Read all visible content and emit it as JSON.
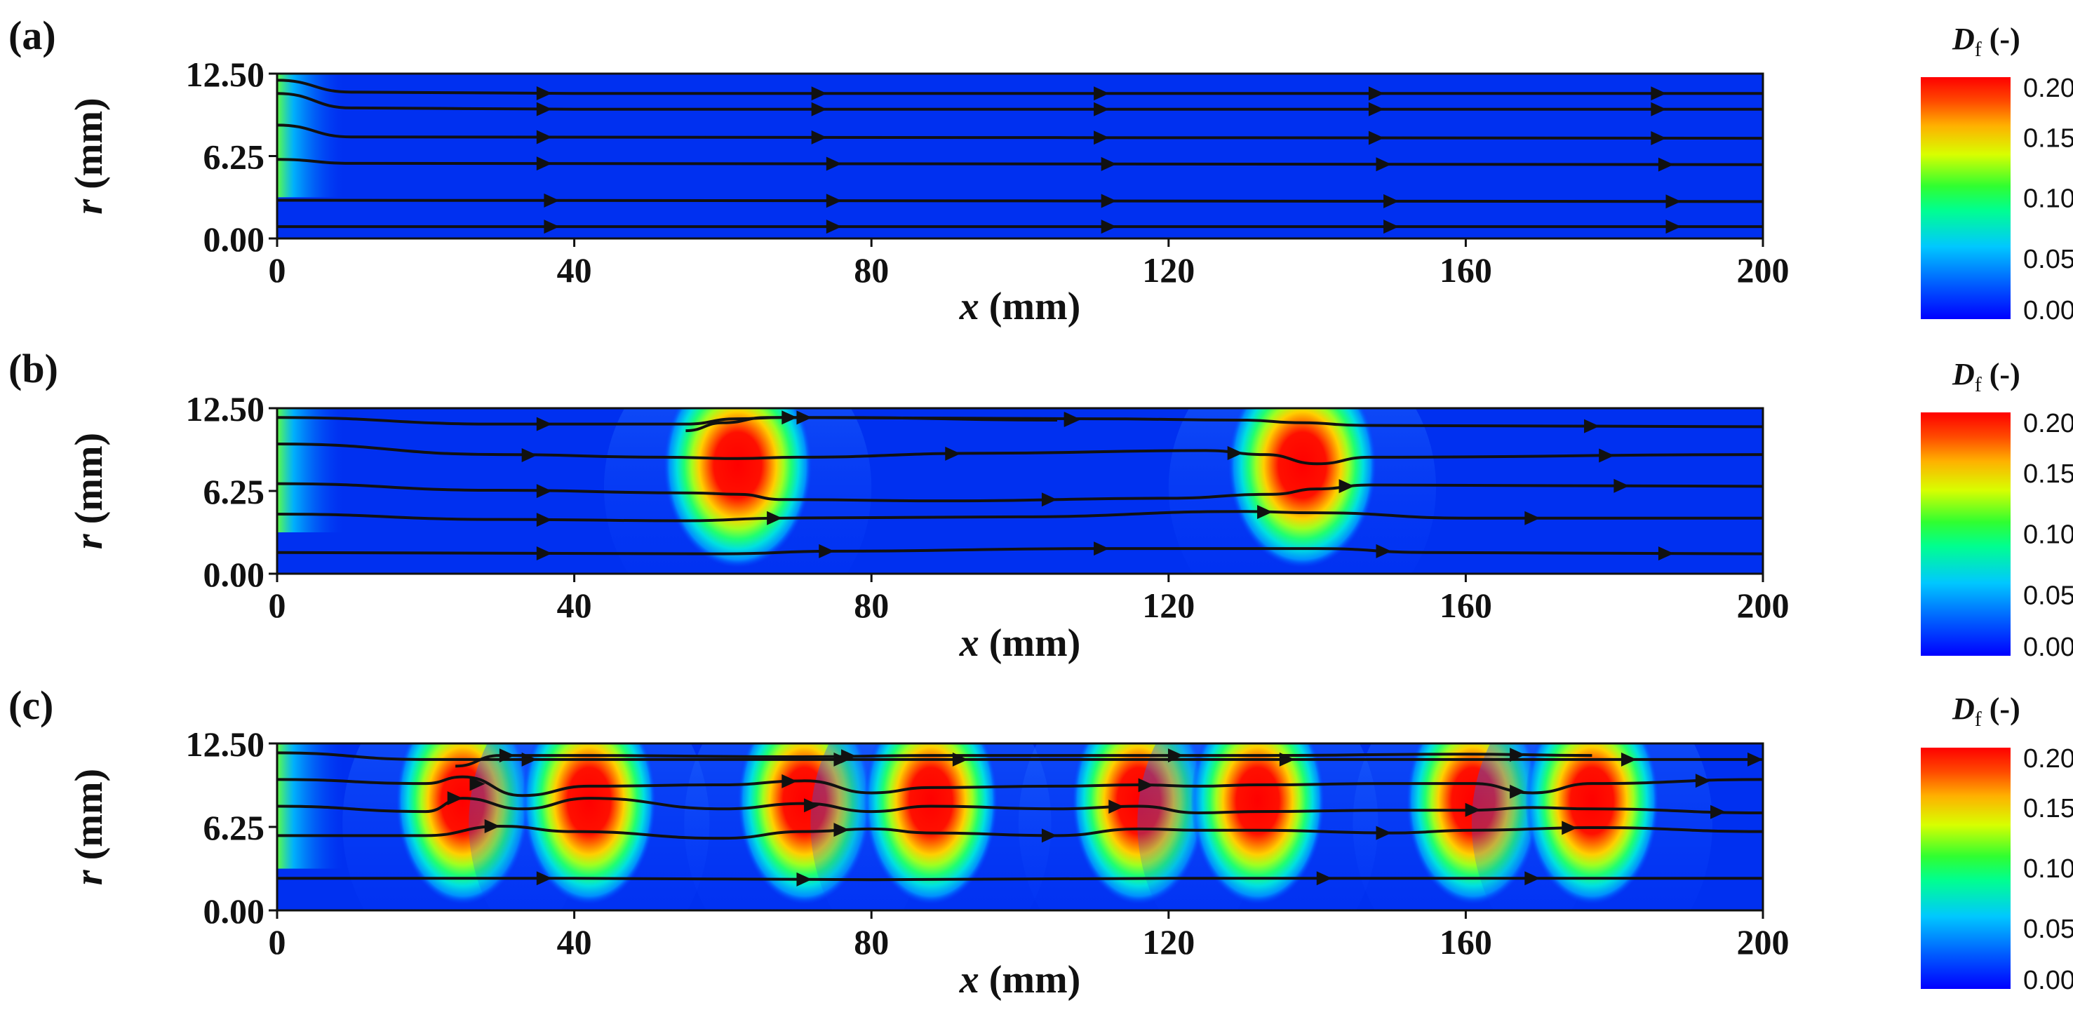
{
  "chart_data": [
    {
      "type": "heatmap",
      "panel": "(a)",
      "xlabel_var": "x",
      "xlabel_unit": "(mm)",
      "ylabel_var": "r",
      "ylabel_unit": "(mm)",
      "xlim": [
        0,
        200
      ],
      "ylim": [
        0,
        12.5
      ],
      "x_ticks": [
        "0",
        "40",
        "80",
        "120",
        "160",
        "200"
      ],
      "y_ticks": [
        "0.00",
        "6.25",
        "12.50"
      ],
      "hotspots": [],
      "streamlines": [
        {
          "r": 11.0,
          "points": [
            [
              0,
              12.0
            ],
            [
              10,
              11.1
            ],
            [
              40,
              11.0
            ],
            [
              200,
              11.0
            ]
          ],
          "arrows": [
            37,
            74,
            112,
            149,
            187
          ]
        },
        {
          "r": 9.8,
          "points": [
            [
              0,
              11.0
            ],
            [
              10,
              9.9
            ],
            [
              40,
              9.8
            ],
            [
              200,
              9.8
            ]
          ],
          "arrows": [
            37,
            74,
            112,
            149,
            187
          ]
        },
        {
          "r": 7.6,
          "points": [
            [
              0,
              8.6
            ],
            [
              10,
              7.7
            ],
            [
              200,
              7.6
            ]
          ],
          "arrows": [
            37,
            74,
            112,
            149,
            187
          ]
        },
        {
          "r": 5.6,
          "points": [
            [
              0,
              6.0
            ],
            [
              10,
              5.7
            ],
            [
              200,
              5.6
            ]
          ],
          "arrows": [
            37,
            76,
            113,
            150,
            188
          ]
        },
        {
          "r": 2.8,
          "points": [
            [
              0,
              2.9
            ],
            [
              200,
              2.8
            ]
          ],
          "arrows": [
            38,
            76,
            113,
            151,
            189
          ]
        },
        {
          "r": 0.9,
          "points": [
            [
              0,
              0.9
            ],
            [
              200,
              0.9
            ]
          ],
          "arrows": [
            38,
            76,
            113,
            151,
            189
          ]
        }
      ],
      "colorbar": {
        "title_symbol": "D",
        "title_subscript": "f",
        "title_unit": "(-)",
        "ticks": [
          "0.00",
          "0.05",
          "0.10",
          "0.15",
          "0.20"
        ],
        "min": 0,
        "max": 0.2
      }
    },
    {
      "type": "heatmap",
      "panel": "(b)",
      "xlabel_var": "x",
      "xlabel_unit": "(mm)",
      "ylabel_var": "r",
      "ylabel_unit": "(mm)",
      "xlim": [
        0,
        200
      ],
      "ylim": [
        0,
        12.5
      ],
      "x_ticks": [
        "0",
        "40",
        "80",
        "120",
        "160",
        "200"
      ],
      "y_ticks": [
        "0.00",
        "6.25",
        "12.50"
      ],
      "hotspots": [
        62,
        138
      ],
      "streamlines": [
        {
          "r": 11.2,
          "points": [
            [
              0,
              11.8
            ],
            [
              30,
              11.3
            ],
            [
              55,
              11.3
            ],
            [
              62,
              11.7
            ],
            [
              68,
              11.8
            ],
            [
              110,
              11.7
            ],
            [
              130,
              11.6
            ],
            [
              138,
              11.4
            ],
            [
              146,
              11.2
            ],
            [
              200,
              11.1
            ]
          ],
          "arrows": [
            37,
            72,
            108,
            178
          ]
        },
        {
          "r": 10.6,
          "points": [
            [
              55,
              10.8
            ],
            [
              60,
              11.4
            ],
            [
              66,
              11.8
            ],
            [
              75,
              11.8
            ],
            [
              105,
              11.6
            ]
          ],
          "arrows": [
            70,
            108
          ]
        },
        {
          "r": 9.0,
          "points": [
            [
              0,
              9.8
            ],
            [
              30,
              9.0
            ],
            [
              52,
              8.8
            ],
            [
              62,
              8.7
            ],
            [
              70,
              8.8
            ],
            [
              95,
              9.1
            ],
            [
              125,
              9.3
            ],
            [
              133,
              9.0
            ],
            [
              140,
              8.3
            ],
            [
              147,
              8.8
            ],
            [
              200,
              9.0
            ]
          ],
          "arrows": [
            35,
            92,
            130,
            180
          ]
        },
        {
          "r": 6.4,
          "points": [
            [
              0,
              6.8
            ],
            [
              30,
              6.3
            ],
            [
              56,
              6.1
            ],
            [
              62,
              6.0
            ],
            [
              68,
              5.6
            ],
            [
              90,
              5.5
            ],
            [
              120,
              5.7
            ],
            [
              134,
              6.0
            ],
            [
              140,
              6.4
            ],
            [
              147,
              6.7
            ],
            [
              200,
              6.6
            ]
          ],
          "arrows": [
            37,
            105,
            145,
            182
          ]
        },
        {
          "r": 4.1,
          "points": [
            [
              0,
              4.5
            ],
            [
              30,
              4.1
            ],
            [
              55,
              4.0
            ],
            [
              68,
              4.2
            ],
            [
              100,
              4.3
            ],
            [
              130,
              4.7
            ],
            [
              140,
              4.6
            ],
            [
              160,
              4.2
            ],
            [
              200,
              4.2
            ]
          ],
          "arrows": [
            37,
            68,
            134,
            170
          ]
        },
        {
          "r": 1.6,
          "points": [
            [
              0,
              1.6
            ],
            [
              60,
              1.5
            ],
            [
              75,
              1.7
            ],
            [
              110,
              1.9
            ],
            [
              140,
              1.9
            ],
            [
              155,
              1.6
            ],
            [
              200,
              1.5
            ]
          ],
          "arrows": [
            37,
            75,
            112,
            150,
            188
          ]
        }
      ],
      "colorbar": {
        "title_symbol": "D",
        "title_subscript": "f",
        "title_unit": "(-)",
        "ticks": [
          "0.00",
          "0.05",
          "0.10",
          "0.15",
          "0.20"
        ],
        "min": 0,
        "max": 0.2
      }
    },
    {
      "type": "heatmap",
      "panel": "(c)",
      "xlabel_var": "x",
      "xlabel_unit": "(mm)",
      "ylabel_var": "r",
      "ylabel_unit": "(mm)",
      "xlim": [
        0,
        200
      ],
      "ylim": [
        0,
        12.5
      ],
      "x_ticks": [
        "0",
        "40",
        "80",
        "120",
        "160",
        "200"
      ],
      "y_ticks": [
        "0.00",
        "6.25",
        "12.50"
      ],
      "hotspots": [
        25,
        42,
        71,
        88,
        116,
        132,
        161,
        177
      ],
      "streamlines": [
        {
          "r": 11.2,
          "points": [
            [
              0,
              11.8
            ],
            [
              20,
              11.3
            ],
            [
              200,
              11.3
            ]
          ],
          "arrows": [
            35,
            77,
            93,
            137,
            183,
            200
          ]
        },
        {
          "r": 10.8,
          "points": [
            [
              24,
              10.8
            ],
            [
              30,
              11.6
            ],
            [
              42,
              11.6
            ],
            [
              70,
              11.5
            ],
            [
              88,
              11.6
            ],
            [
              116,
              11.6
            ],
            [
              132,
              11.6
            ],
            [
              160,
              11.7
            ],
            [
              177,
              11.6
            ]
          ],
          "arrows": [
            32,
            78,
            122,
            168
          ]
        },
        {
          "r": 9.5,
          "points": [
            [
              0,
              9.8
            ],
            [
              20,
              9.5
            ],
            [
              25,
              10.0
            ],
            [
              33,
              8.6
            ],
            [
              42,
              9.3
            ],
            [
              60,
              9.4
            ],
            [
              71,
              9.7
            ],
            [
              80,
              8.8
            ],
            [
              88,
              9.2
            ],
            [
              105,
              9.3
            ],
            [
              116,
              9.4
            ],
            [
              124,
              9.3
            ],
            [
              132,
              9.4
            ],
            [
              150,
              9.5
            ],
            [
              161,
              9.5
            ],
            [
              169,
              8.8
            ],
            [
              177,
              9.5
            ],
            [
              200,
              9.8
            ]
          ],
          "arrows": [
            28,
            70,
            118,
            168,
            193
          ]
        },
        {
          "r": 7.3,
          "points": [
            [
              0,
              7.8
            ],
            [
              20,
              7.4
            ],
            [
              25,
              8.4
            ],
            [
              33,
              7.6
            ],
            [
              42,
              8.4
            ],
            [
              60,
              7.6
            ],
            [
              71,
              8.0
            ],
            [
              80,
              7.4
            ],
            [
              88,
              7.8
            ],
            [
              105,
              7.6
            ],
            [
              116,
              7.8
            ],
            [
              124,
              7.3
            ],
            [
              132,
              7.4
            ],
            [
              150,
              7.5
            ],
            [
              161,
              7.5
            ],
            [
              169,
              7.7
            ],
            [
              177,
              7.6
            ],
            [
              200,
              7.3
            ]
          ],
          "arrows": [
            25,
            73,
            114,
            162,
            195
          ]
        },
        {
          "r": 5.3,
          "points": [
            [
              0,
              5.6
            ],
            [
              20,
              5.6
            ],
            [
              30,
              6.3
            ],
            [
              40,
              5.9
            ],
            [
              60,
              5.4
            ],
            [
              71,
              5.9
            ],
            [
              80,
              6.1
            ],
            [
              88,
              5.8
            ],
            [
              105,
              5.6
            ],
            [
              116,
              6.1
            ],
            [
              124,
              6.0
            ],
            [
              132,
              6.0
            ],
            [
              150,
              5.8
            ],
            [
              161,
              6.0
            ],
            [
              177,
              6.2
            ],
            [
              200,
              5.9
            ]
          ],
          "arrows": [
            30,
            77,
            105,
            150,
            175
          ]
        },
        {
          "r": 2.4,
          "points": [
            [
              0,
              2.4
            ],
            [
              40,
              2.4
            ],
            [
              80,
              2.3
            ],
            [
              120,
              2.4
            ],
            [
              160,
              2.4
            ],
            [
              200,
              2.4
            ]
          ],
          "arrows": [
            37,
            72,
            142,
            170
          ]
        }
      ],
      "colorbar": {
        "title_symbol": "D",
        "title_subscript": "f",
        "title_unit": "(-)",
        "ticks": [
          "0.00",
          "0.05",
          "0.10",
          "0.15",
          "0.20"
        ],
        "min": 0,
        "max": 0.2
      }
    }
  ]
}
